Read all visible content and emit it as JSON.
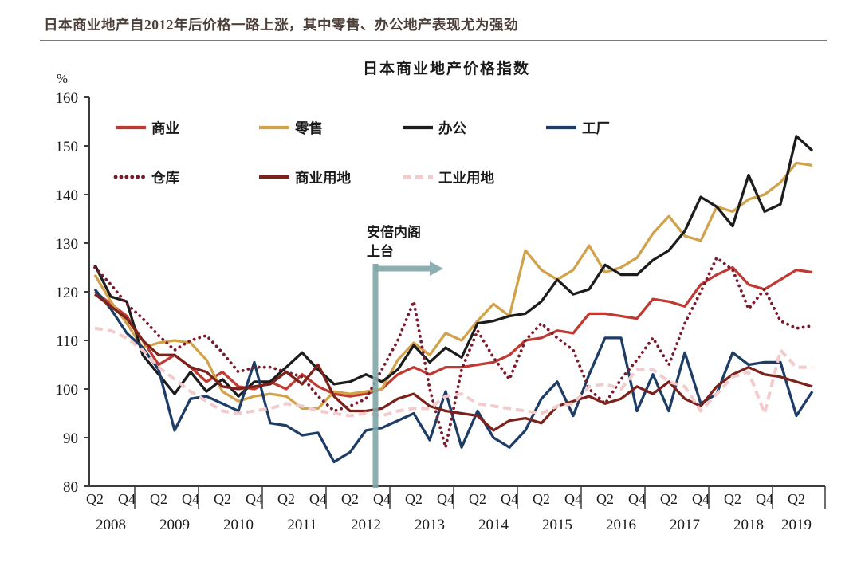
{
  "header": {
    "report_title": "日本商业地产自2012年后价格一路上涨，其中零售、办公地产表现尤为强劲"
  },
  "chart_data": {
    "type": "line",
    "title": "日本商业地产价格指数",
    "ylabel": "%",
    "ylim": [
      80,
      160
    ],
    "ytick_step": 10,
    "yticks": [
      80,
      90,
      100,
      110,
      120,
      130,
      140,
      150,
      160
    ],
    "grid": false,
    "legend_position": "top-left two rows inside plot",
    "x": [
      "2008Q2",
      "2008Q3",
      "2008Q4",
      "2009Q1",
      "2009Q2",
      "2009Q3",
      "2009Q4",
      "2010Q1",
      "2010Q2",
      "2010Q3",
      "2010Q4",
      "2011Q1",
      "2011Q2",
      "2011Q3",
      "2011Q4",
      "2012Q1",
      "2012Q2",
      "2012Q3",
      "2012Q4",
      "2013Q1",
      "2013Q2",
      "2013Q3",
      "2013Q4",
      "2014Q1",
      "2014Q2",
      "2014Q3",
      "2014Q4",
      "2015Q1",
      "2015Q2",
      "2015Q3",
      "2015Q4",
      "2016Q1",
      "2016Q2",
      "2016Q3",
      "2016Q4",
      "2017Q1",
      "2017Q2",
      "2017Q3",
      "2017Q4",
      "2018Q1",
      "2018Q2",
      "2018Q3",
      "2018Q4",
      "2019Q1",
      "2019Q2",
      "2019Q3"
    ],
    "x_axis": {
      "years": [
        {
          "label": "2008",
          "quarters": [
            "Q2",
            "Q4"
          ]
        },
        {
          "label": "2009",
          "quarters": [
            "Q2",
            "Q4"
          ]
        },
        {
          "label": "2010",
          "quarters": [
            "Q2",
            "Q4"
          ]
        },
        {
          "label": "2011",
          "quarters": [
            "Q2",
            "Q4"
          ]
        },
        {
          "label": "2012",
          "quarters": [
            "Q2",
            "Q4"
          ]
        },
        {
          "label": "2013",
          "quarters": [
            "Q2",
            "Q4"
          ]
        },
        {
          "label": "2014",
          "quarters": [
            "Q2",
            "Q4"
          ]
        },
        {
          "label": "2015",
          "quarters": [
            "Q2",
            "Q4"
          ]
        },
        {
          "label": "2016",
          "quarters": [
            "Q2",
            "Q4"
          ]
        },
        {
          "label": "2017",
          "quarters": [
            "Q2",
            "Q4"
          ]
        },
        {
          "label": "2018",
          "quarters": [
            "Q2",
            "Q4"
          ]
        },
        {
          "label": "2019",
          "quarters": [
            "Q2"
          ]
        }
      ]
    },
    "series": [
      {
        "name": "商业",
        "key": "commercial",
        "color": "#bf3a32",
        "style": "solid",
        "values": [
          120,
          117.5,
          115,
          110,
          105,
          107,
          104.5,
          101.5,
          103.5,
          100.5,
          100,
          101.5,
          100,
          103,
          100.5,
          99,
          98.5,
          99,
          100,
          103,
          104.5,
          103,
          104.5,
          104.5,
          105,
          105.5,
          107,
          110,
          110.5,
          112,
          111.5,
          115.5,
          115.5,
          115,
          114.5,
          118.5,
          118,
          117,
          121.5,
          123.5,
          125,
          121.5,
          120.5,
          122.5,
          124.5,
          124
        ]
      },
      {
        "name": "零售",
        "key": "retail",
        "color": "#d1a24a",
        "style": "solid",
        "values": [
          123.5,
          118,
          113.5,
          108.5,
          109.5,
          110,
          109.5,
          106,
          99.5,
          97.5,
          98.5,
          99,
          98.5,
          96,
          96,
          99.5,
          99,
          99.5,
          100,
          106,
          109.5,
          107,
          111.5,
          110,
          114,
          117.5,
          115,
          128.5,
          124.5,
          122.5,
          124.5,
          129.5,
          124,
          125,
          127,
          132,
          135.5,
          131.5,
          130.5,
          137.5,
          136.5,
          139,
          140,
          142.5,
          146.5,
          146
        ]
      },
      {
        "name": "办公",
        "key": "office",
        "color": "#1c1c1c",
        "style": "solid",
        "values": [
          125.5,
          119,
          118,
          107,
          103,
          99,
          103.5,
          99.5,
          102,
          98.5,
          101.5,
          101.5,
          104.5,
          107.5,
          104,
          101,
          101.5,
          103,
          101.5,
          104,
          109,
          105.5,
          108.5,
          106.5,
          113.5,
          114,
          115,
          115.5,
          118,
          122.5,
          119.5,
          120.5,
          125.5,
          123.5,
          123.5,
          126.5,
          128.5,
          132.5,
          139.5,
          137.5,
          133.5,
          144,
          136.5,
          138,
          152,
          149
        ]
      },
      {
        "name": "工厂",
        "key": "factory",
        "color": "#1e3d66",
        "style": "solid",
        "values": [
          120.5,
          116.5,
          111.5,
          108.5,
          104,
          91.5,
          98,
          98.5,
          97,
          95.5,
          105.5,
          93,
          92.5,
          90.5,
          91,
          85,
          87,
          91.5,
          92,
          93.5,
          95,
          89.5,
          99.5,
          88,
          95.5,
          90,
          88,
          91.5,
          98,
          101.5,
          94.5,
          103,
          110.5,
          110.5,
          95.5,
          103,
          95.5,
          107.5,
          97,
          99,
          107.5,
          105,
          105.5,
          105.5,
          94.5,
          99.5
        ]
      },
      {
        "name": "仓库",
        "key": "warehouse",
        "color": "#7a1b2d",
        "style": "dotted",
        "values": [
          125,
          121.5,
          117.5,
          114.5,
          111,
          108,
          110,
          111,
          107.5,
          103.5,
          104.5,
          104.5,
          103.5,
          102.5,
          98.5,
          95.5,
          96.5,
          98,
          104,
          110,
          118,
          100,
          88,
          104,
          112,
          106.5,
          102,
          110,
          113.5,
          110.5,
          108,
          100,
          97,
          102,
          106,
          110.5,
          105,
          113.5,
          120,
          127,
          124.5,
          116.5,
          120.5,
          114,
          112.5,
          113
        ]
      },
      {
        "name": "商业用地",
        "key": "commercial-land",
        "color": "#7c221c",
        "style": "solid",
        "values": [
          119.5,
          117,
          114.5,
          110,
          107,
          107,
          104.5,
          103.5,
          100.5,
          100,
          100.5,
          101,
          103.5,
          101,
          105,
          98.5,
          95.5,
          95.5,
          96,
          98,
          99,
          96.5,
          95.5,
          95,
          94.5,
          91.5,
          93.5,
          94,
          93,
          96.5,
          97.5,
          98.5,
          97,
          98,
          100.5,
          99,
          101.5,
          98,
          96.5,
          100.5,
          103,
          104.5,
          103,
          102.5,
          101.5,
          100.5
        ]
      },
      {
        "name": "工业用地",
        "key": "industrial-land",
        "color": "#f2cbcd",
        "style": "dashed",
        "values": [
          112.5,
          112,
          110.5,
          108,
          104.5,
          102,
          99.5,
          97.5,
          95.5,
          95,
          95.5,
          96,
          97,
          96.5,
          95.5,
          95,
          94.5,
          95,
          94.5,
          95.5,
          96,
          96,
          98.5,
          99,
          97,
          96.5,
          96,
          95.5,
          95,
          96.5,
          97,
          100.5,
          101,
          100,
          104,
          104,
          101.5,
          100.5,
          95.5,
          99,
          102.5,
          103.5,
          95,
          108,
          104.5,
          104.5
        ]
      }
    ],
    "annotation": {
      "lines": [
        "安倍内阁",
        "上台"
      ],
      "x": "2012Q4",
      "arrow_direction": "right",
      "color": "#80a7a9"
    }
  }
}
